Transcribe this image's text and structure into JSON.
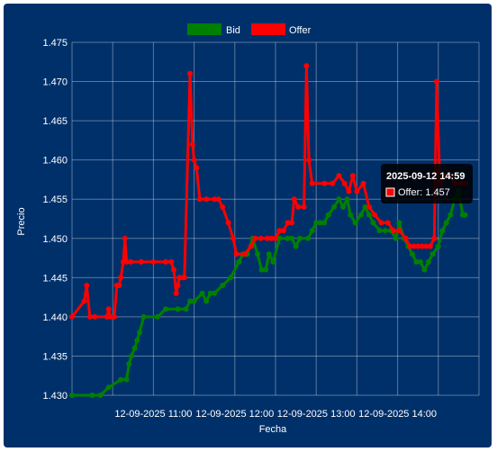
{
  "chart_data": {
    "type": "line",
    "xlabel": "Fecha",
    "ylabel": "Precio",
    "ylim": [
      1.43,
      1.475
    ],
    "yticks": [
      "1.475",
      "1.470",
      "1.465",
      "1.460",
      "1.455",
      "1.450",
      "1.445",
      "1.440",
      "1.435",
      "1.430"
    ],
    "xticks": [
      {
        "hour": 10.5,
        "label": "12-09-2025 11:00"
      },
      {
        "hour": 11.5,
        "label": "12-09-2025 12:00"
      },
      {
        "hour": 12.5,
        "label": "12-09-2025 13:00"
      },
      {
        "hour": 13.5,
        "label": "12-09-2025 14:00"
      }
    ],
    "xlim_hours": [
      9.5,
      14.5
    ],
    "grid": true,
    "legend_position": "top",
    "series": [
      {
        "name": "Bid",
        "color": "#008000",
        "points": [
          [
            9.5,
            1.43
          ],
          [
            9.75,
            1.43
          ],
          [
            9.85,
            1.43
          ],
          [
            9.95,
            1.431
          ],
          [
            10.1,
            1.432
          ],
          [
            10.17,
            1.432
          ],
          [
            10.2,
            1.434
          ],
          [
            10.23,
            1.435
          ],
          [
            10.27,
            1.436
          ],
          [
            10.3,
            1.437
          ],
          [
            10.33,
            1.438
          ],
          [
            10.38,
            1.44
          ],
          [
            10.55,
            1.44
          ],
          [
            10.65,
            1.441
          ],
          [
            10.8,
            1.441
          ],
          [
            10.9,
            1.441
          ],
          [
            10.95,
            1.442
          ],
          [
            11.0,
            1.442
          ],
          [
            11.1,
            1.443
          ],
          [
            11.15,
            1.442
          ],
          [
            11.2,
            1.443
          ],
          [
            11.25,
            1.443
          ],
          [
            11.35,
            1.444
          ],
          [
            11.45,
            1.445
          ],
          [
            11.55,
            1.447
          ],
          [
            11.6,
            1.448
          ],
          [
            11.65,
            1.448
          ],
          [
            11.72,
            1.45
          ],
          [
            11.78,
            1.448
          ],
          [
            11.83,
            1.446
          ],
          [
            11.88,
            1.446
          ],
          [
            11.92,
            1.448
          ],
          [
            11.97,
            1.447
          ],
          [
            12.05,
            1.45
          ],
          [
            12.15,
            1.45
          ],
          [
            12.2,
            1.45
          ],
          [
            12.25,
            1.449
          ],
          [
            12.3,
            1.45
          ],
          [
            12.4,
            1.45
          ],
          [
            12.45,
            1.451
          ],
          [
            12.5,
            1.452
          ],
          [
            12.55,
            1.452
          ],
          [
            12.6,
            1.452
          ],
          [
            12.65,
            1.453
          ],
          [
            12.72,
            1.454
          ],
          [
            12.78,
            1.455
          ],
          [
            12.83,
            1.454
          ],
          [
            12.88,
            1.455
          ],
          [
            12.92,
            1.453
          ],
          [
            12.98,
            1.452
          ],
          [
            13.05,
            1.453
          ],
          [
            13.1,
            1.454
          ],
          [
            13.15,
            1.453
          ],
          [
            13.2,
            1.452
          ],
          [
            13.28,
            1.451
          ],
          [
            13.35,
            1.451
          ],
          [
            13.42,
            1.451
          ],
          [
            13.48,
            1.45
          ],
          [
            13.52,
            1.452
          ],
          [
            13.58,
            1.45
          ],
          [
            13.63,
            1.449
          ],
          [
            13.68,
            1.448
          ],
          [
            13.73,
            1.447
          ],
          [
            13.78,
            1.447
          ],
          [
            13.83,
            1.446
          ],
          [
            13.88,
            1.447
          ],
          [
            13.93,
            1.448
          ],
          [
            14.0,
            1.449
          ],
          [
            14.05,
            1.451
          ],
          [
            14.1,
            1.452
          ],
          [
            14.15,
            1.453
          ],
          [
            14.2,
            1.455
          ],
          [
            14.25,
            1.456
          ],
          [
            14.3,
            1.453
          ],
          [
            14.33,
            1.453
          ]
        ]
      },
      {
        "name": "Offer",
        "color": "#ff0000",
        "points": [
          [
            9.5,
            1.44
          ],
          [
            9.65,
            1.442
          ],
          [
            9.68,
            1.444
          ],
          [
            9.72,
            1.44
          ],
          [
            9.78,
            1.44
          ],
          [
            9.93,
            1.44
          ],
          [
            9.95,
            1.441
          ],
          [
            9.97,
            1.44
          ],
          [
            10.02,
            1.44
          ],
          [
            10.05,
            1.444
          ],
          [
            10.08,
            1.444
          ],
          [
            10.1,
            1.445
          ],
          [
            10.13,
            1.447
          ],
          [
            10.15,
            1.45
          ],
          [
            10.17,
            1.447
          ],
          [
            10.22,
            1.447
          ],
          [
            10.35,
            1.447
          ],
          [
            10.5,
            1.447
          ],
          [
            10.65,
            1.447
          ],
          [
            10.72,
            1.447
          ],
          [
            10.75,
            1.446
          ],
          [
            10.78,
            1.443
          ],
          [
            10.8,
            1.444
          ],
          [
            10.82,
            1.445
          ],
          [
            10.86,
            1.445
          ],
          [
            10.88,
            1.445
          ],
          [
            10.95,
            1.471
          ],
          [
            10.98,
            1.462
          ],
          [
            11.0,
            1.46
          ],
          [
            11.03,
            1.459
          ],
          [
            11.07,
            1.455
          ],
          [
            11.15,
            1.455
          ],
          [
            11.25,
            1.455
          ],
          [
            11.3,
            1.455
          ],
          [
            11.35,
            1.454
          ],
          [
            11.42,
            1.452
          ],
          [
            11.48,
            1.45
          ],
          [
            11.52,
            1.448
          ],
          [
            11.62,
            1.448
          ],
          [
            11.7,
            1.449
          ],
          [
            11.75,
            1.45
          ],
          [
            11.82,
            1.45
          ],
          [
            11.9,
            1.45
          ],
          [
            11.95,
            1.45
          ],
          [
            12.0,
            1.45
          ],
          [
            12.05,
            1.451
          ],
          [
            12.1,
            1.451
          ],
          [
            12.15,
            1.452
          ],
          [
            12.2,
            1.452
          ],
          [
            12.23,
            1.455
          ],
          [
            12.28,
            1.454
          ],
          [
            12.35,
            1.454
          ],
          [
            12.38,
            1.472
          ],
          [
            12.41,
            1.46
          ],
          [
            12.45,
            1.457
          ],
          [
            12.6,
            1.457
          ],
          [
            12.7,
            1.457
          ],
          [
            12.78,
            1.458
          ],
          [
            12.85,
            1.457
          ],
          [
            12.9,
            1.456
          ],
          [
            12.95,
            1.458
          ],
          [
            13.0,
            1.456
          ],
          [
            13.08,
            1.457
          ],
          [
            13.15,
            1.454
          ],
          [
            13.22,
            1.453
          ],
          [
            13.3,
            1.452
          ],
          [
            13.38,
            1.452
          ],
          [
            13.45,
            1.451
          ],
          [
            13.52,
            1.451
          ],
          [
            13.6,
            1.45
          ],
          [
            13.65,
            1.449
          ],
          [
            13.7,
            1.449
          ],
          [
            13.75,
            1.449
          ],
          [
            13.8,
            1.449
          ],
          [
            13.85,
            1.449
          ],
          [
            13.9,
            1.449
          ],
          [
            13.95,
            1.45
          ],
          [
            13.98,
            1.47
          ],
          [
            14.02,
            1.457
          ],
          [
            14.08,
            1.458
          ],
          [
            14.15,
            1.458
          ],
          [
            14.2,
            1.457
          ],
          [
            14.28,
            1.457
          ],
          [
            14.33,
            1.457
          ]
        ]
      }
    ],
    "tooltip": {
      "title": "2025-09-12 14:59",
      "label": "Offer: 1.457",
      "swatch_color": "#ff0000"
    }
  }
}
